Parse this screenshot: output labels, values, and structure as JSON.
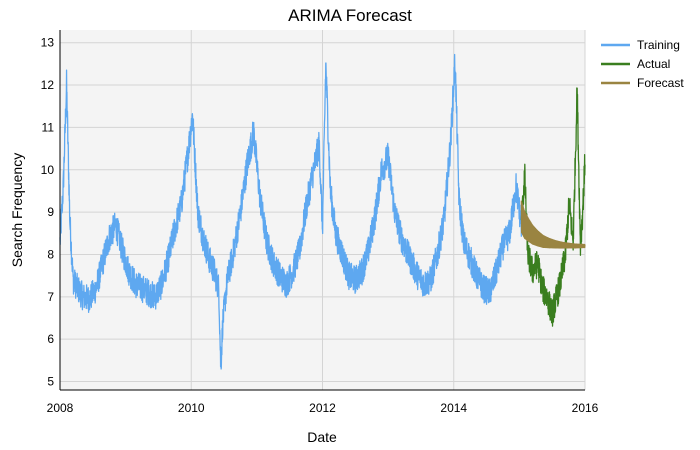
{
  "chart_data": {
    "type": "line",
    "title": "ARIMA Forecast",
    "xlabel": "Date",
    "ylabel": "Search Frequency",
    "xlim": [
      2008.0,
      2016.0
    ],
    "ylim": [
      4.8,
      13.3
    ],
    "x_ticks": [
      2008,
      2010,
      2012,
      2014,
      2016
    ],
    "x_tick_labels": [
      "2008",
      "2010",
      "2012",
      "2014",
      "2016"
    ],
    "y_ticks": [
      5,
      6,
      7,
      8,
      9,
      10,
      11,
      12,
      13
    ],
    "grid": true,
    "legend_position": "top-right",
    "series": [
      {
        "name": "Training",
        "color": "#5ea8f0",
        "x": [
          2008.0,
          2008.05,
          2008.1,
          2008.15,
          2008.2,
          2008.27,
          2008.35,
          2008.45,
          2008.55,
          2008.65,
          2008.75,
          2008.85,
          2008.95,
          2009.05,
          2009.15,
          2009.25,
          2009.35,
          2009.45,
          2009.55,
          2009.65,
          2009.75,
          2009.85,
          2009.95,
          2010.02,
          2010.1,
          2010.18,
          2010.27,
          2010.35,
          2010.42,
          2010.45,
          2010.48,
          2010.55,
          2010.65,
          2010.75,
          2010.85,
          2010.95,
          2011.05,
          2011.15,
          2011.25,
          2011.35,
          2011.45,
          2011.55,
          2011.65,
          2011.75,
          2011.85,
          2011.95,
          2012.0,
          2012.05,
          2012.12,
          2012.2,
          2012.3,
          2012.4,
          2012.5,
          2012.6,
          2012.7,
          2012.8,
          2012.9,
          2013.0,
          2013.1,
          2013.2,
          2013.3,
          2013.45,
          2013.55,
          2013.65,
          2013.75,
          2013.85,
          2013.95,
          2014.02,
          2014.08,
          2014.15,
          2014.25,
          2014.35,
          2014.45,
          2014.55,
          2014.65,
          2014.75,
          2014.85,
          2014.95,
          2015.03
        ],
        "values": [
          8.3,
          9.6,
          12.0,
          8.8,
          7.4,
          7.2,
          7.0,
          6.95,
          7.2,
          7.8,
          8.4,
          8.7,
          8.1,
          7.6,
          7.3,
          7.2,
          7.1,
          7.0,
          7.3,
          7.9,
          8.6,
          9.2,
          10.4,
          11.3,
          9.0,
          8.4,
          7.9,
          7.6,
          7.2,
          5.3,
          6.4,
          7.4,
          8.1,
          9.0,
          10.1,
          10.9,
          9.3,
          8.3,
          7.8,
          7.5,
          7.3,
          7.6,
          8.1,
          9.1,
          9.9,
          10.6,
          8.6,
          12.5,
          9.5,
          8.5,
          8.0,
          7.5,
          7.4,
          7.6,
          8.1,
          8.9,
          10.0,
          10.3,
          9.0,
          8.4,
          8.0,
          7.5,
          7.3,
          7.4,
          8.0,
          8.8,
          10.6,
          12.6,
          9.3,
          8.3,
          7.9,
          7.5,
          7.2,
          7.1,
          7.6,
          8.2,
          8.5,
          9.6,
          8.7
        ]
      },
      {
        "name": "Actual",
        "color": "#3a7e1f",
        "x": [
          2015.03,
          2015.08,
          2015.13,
          2015.2,
          2015.28,
          2015.35,
          2015.42,
          2015.5,
          2015.55,
          2015.62,
          2015.7,
          2015.76,
          2015.82,
          2015.88,
          2015.93,
          2015.96,
          2016.0
        ],
        "values": [
          8.6,
          9.9,
          8.0,
          7.6,
          7.8,
          7.2,
          7.0,
          6.6,
          6.9,
          7.3,
          8.0,
          9.2,
          8.3,
          11.9,
          8.2,
          8.9,
          10.2
        ]
      },
      {
        "name": "Forecast",
        "color": "#9a8441",
        "x": [
          2015.03,
          2015.08,
          2015.14,
          2015.2,
          2015.28,
          2015.36,
          2015.45,
          2015.55,
          2015.65,
          2015.75,
          2015.85,
          2016.0
        ],
        "values": [
          8.9,
          8.7,
          8.58,
          8.47,
          8.38,
          8.31,
          8.27,
          8.24,
          8.22,
          8.21,
          8.2,
          8.2
        ]
      }
    ]
  }
}
